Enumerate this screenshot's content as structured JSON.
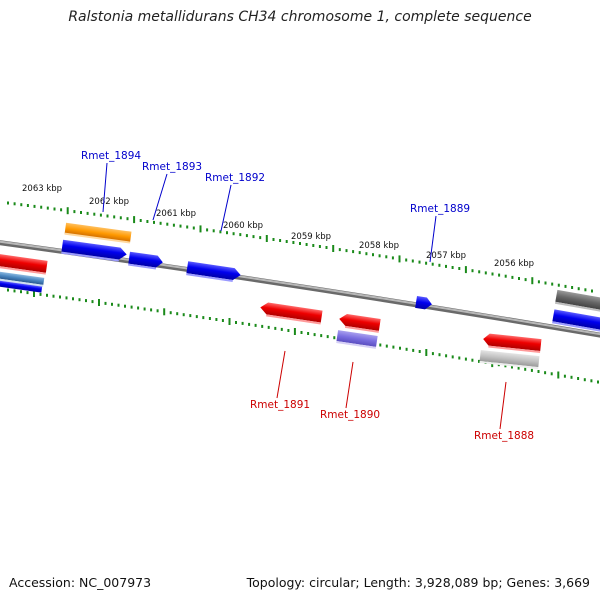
{
  "title": "Ralstonia metallidurans CH34 chromosome 1, complete sequence",
  "footer": {
    "accession": "Accession: NC_007973",
    "topology": "Topology: circular; Length: 3,928,089 bp; Genes: 3,669"
  },
  "colors": {
    "backbone": "#888888",
    "tick": "#1a8a1a",
    "forward_label": "#0000cc",
    "reverse_label": "#cc0000"
  },
  "kbp_labels": [
    "2063 kbp",
    "2062 kbp",
    "2061 kbp",
    "2060 kbp",
    "2059 kbp",
    "2058 kbp",
    "2057 kbp",
    "2056 kbp"
  ],
  "forward_labels": [
    "Rmet_1894",
    "Rmet_1893",
    "Rmet_1892",
    "Rmet_1889"
  ],
  "reverse_labels": [
    "Rmet_1891",
    "Rmet_1890",
    "Rmet_1888"
  ]
}
